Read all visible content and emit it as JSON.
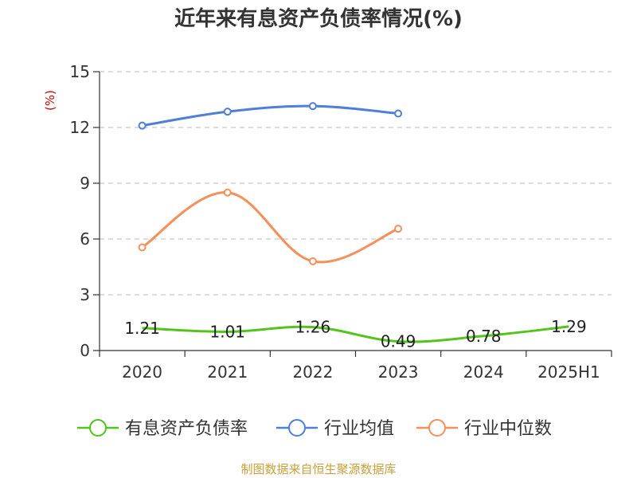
{
  "chart_data": {
    "type": "line",
    "title": "近年来有息资产负债率情况(%)",
    "ylabel": "(%)",
    "categories": [
      "2020",
      "2021",
      "2022",
      "2023",
      "2024",
      "2025H1"
    ],
    "ylim": [
      0,
      15
    ],
    "yticks": [
      0,
      3,
      6,
      9,
      12,
      15
    ],
    "grid": true,
    "legend_position": "bottom",
    "series": [
      {
        "name": "有息资产负债率",
        "color": "#52c41a",
        "values": [
          1.21,
          1.01,
          1.26,
          0.49,
          0.78,
          1.29
        ],
        "labels": [
          "1.21",
          "1.01",
          "1.26",
          "0.49",
          "0.78",
          "1.29"
        ],
        "show_labels": true
      },
      {
        "name": "行业均值",
        "color": "#4f7fd9",
        "values": [
          12.1,
          12.85,
          13.15,
          12.75,
          null,
          null
        ],
        "show_labels": false
      },
      {
        "name": "行业中位数",
        "color": "#f5905a",
        "values": [
          5.55,
          8.5,
          4.8,
          6.55,
          null,
          null
        ],
        "show_labels": false
      }
    ]
  },
  "source_text": "制图数据来自恒生聚源数据库"
}
